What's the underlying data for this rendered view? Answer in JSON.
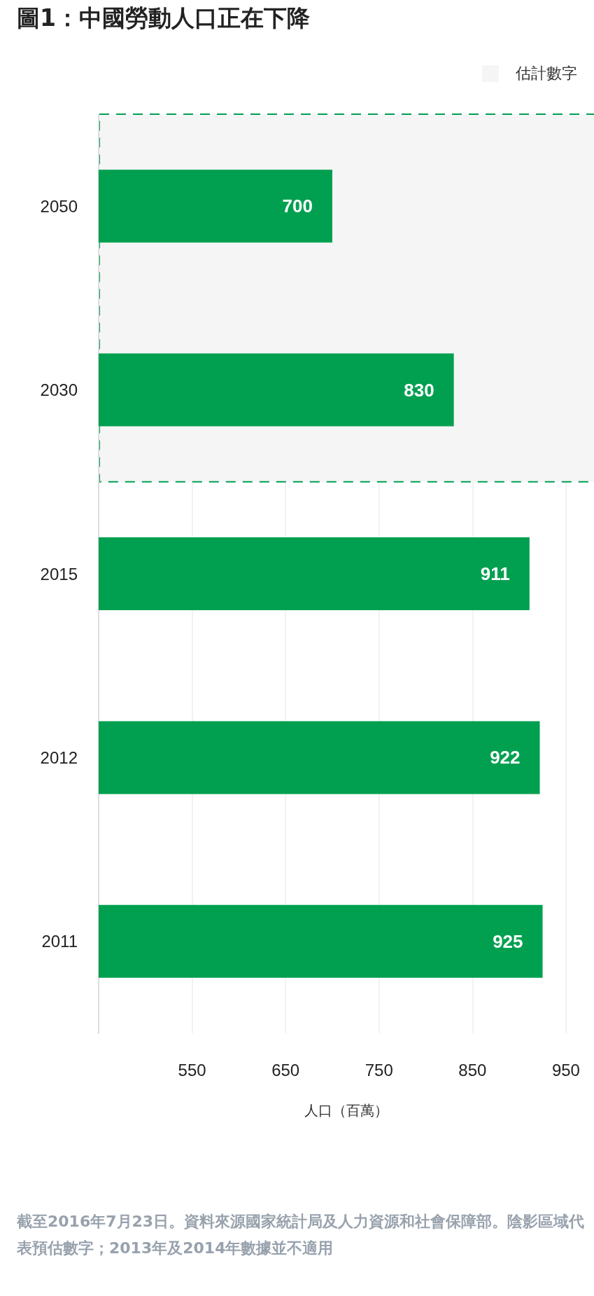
{
  "chart_data": {
    "type": "bar",
    "orientation": "horizontal",
    "title": "圖1：中國勞動人口正在下降",
    "xlabel": "人口（百萬）",
    "categories": [
      "2050",
      "2030",
      "2015",
      "2012",
      "2011"
    ],
    "values": [
      700,
      830,
      911,
      922,
      925
    ],
    "color": "#00a050",
    "data_labels": true,
    "xlim": [
      450,
      980
    ],
    "xticks": [
      550,
      650,
      750,
      850,
      950
    ],
    "grid": "x",
    "legend": "top right",
    "bands": [
      {
        "axis": "y",
        "from": "2050",
        "to": "2030",
        "label": "估計數字",
        "color": "#f5f5f5"
      }
    ],
    "annotations": [
      "截至2016年7月23日。資料來源國家統計局及人力資源和社會保障部。陰影區域代表預估數字；2013年及2014年數據並不適用"
    ]
  }
}
